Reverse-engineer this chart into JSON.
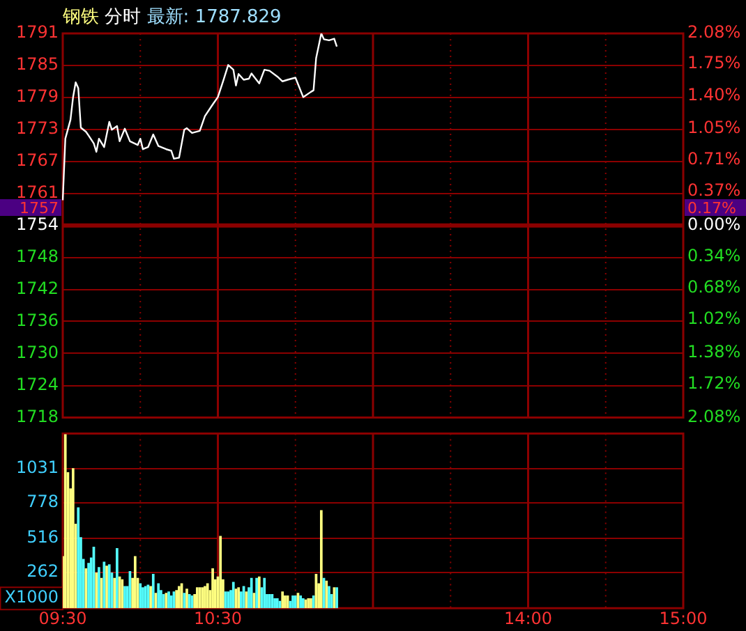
{
  "chart_data": [
    {
      "type": "line",
      "title": "钢铁 分时 最新: 1787.829",
      "tick_labels": "y",
      "categories": [
        null,
        null,
        null,
        null,
        null,
        null,
        null,
        null,
        null,
        null,
        null,
        null,
        null,
        null,
        null,
        null,
        null,
        null,
        null,
        null,
        null,
        null,
        null,
        null,
        null,
        null,
        null,
        null,
        null,
        null,
        null,
        null,
        null,
        null,
        null,
        null,
        null,
        null,
        null,
        null,
        null,
        null,
        null,
        null,
        null,
        null,
        null,
        null,
        null,
        null,
        null,
        null,
        null,
        null,
        null,
        null,
        null,
        null,
        null,
        null,
        null,
        null,
        null,
        null,
        null,
        null,
        null,
        null,
        null,
        null,
        null,
        null,
        null,
        null,
        null,
        null,
        null,
        null,
        null,
        null,
        null,
        null,
        null,
        null,
        null,
        null,
        null,
        null,
        null,
        null,
        null,
        null,
        null,
        null,
        null,
        null,
        null,
        null,
        null,
        null,
        null,
        null,
        null,
        null,
        null,
        null,
        null,
        null,
        null,
        null,
        null,
        null,
        null,
        null,
        null,
        null,
        null,
        null,
        null,
        null,
        null,
        null,
        null,
        null,
        null,
        null,
        null,
        null,
        null,
        null,
        null,
        null,
        null,
        null,
        null,
        null,
        null,
        null,
        null,
        null,
        null,
        null,
        null,
        null,
        null,
        null,
        null,
        null,
        null,
        null,
        null,
        null,
        null,
        null,
        null,
        null,
        null,
        null,
        null,
        null,
        null,
        null,
        null,
        null,
        null,
        null,
        null,
        null,
        null,
        null,
        null,
        null,
        null,
        null,
        null,
        null,
        null,
        null,
        null,
        null,
        null,
        null,
        null,
        null,
        null,
        null,
        null,
        null,
        null,
        null,
        null,
        null,
        null,
        null,
        null,
        null,
        null,
        null,
        null,
        null,
        null,
        null,
        null,
        null,
        null,
        null,
        null,
        null,
        null,
        null,
        null,
        null,
        null,
        null,
        null,
        null,
        null,
        null,
        null,
        null,
        null,
        null,
        null,
        null,
        null,
        null,
        null,
        null,
        null,
        null,
        null,
        null,
        null,
        null,
        null,
        null,
        null,
        null,
        null,
        null,
        null
      ],
      "series": [
        {
          "color": "#ffffff",
          "values": [
            1759.3,
            1771,
            null,
            1774.6,
            1778.9,
            1781.7,
            1780.6,
            1773.1,
            null,
            1772.3,
            1771.6,
            null,
            1770.1,
            1768.5,
            1771,
            null,
            1769.4,
            null,
            1774.2,
            1772.7,
            null,
            1773.4,
            1770.5,
            null,
            1772.9,
            null,
            1770.5,
            null,
            null,
            1769.8,
            1771,
            1769,
            null,
            1769.4,
            null,
            1771.8,
            null,
            1769.6,
            null,
            null,
            1769,
            null,
            1768.7,
            1767.2,
            null,
            1767.4,
            null,
            1772.7,
            1773,
            null,
            1772.1,
            null,
            null,
            1772.5,
            null,
            1775.3,
            null,
            null,
            1777.5,
            null,
            1778.9,
            null,
            1781.9,
            null,
            1785,
            null,
            1784.1,
            1781.1,
            1783.3,
            null,
            1782.2,
            null,
            1782.4,
            1783.4,
            null,
            null,
            1781.5,
            null,
            1784.1,
            null,
            1783.9,
            null,
            null,
            1782.8,
            null,
            1781.9,
            null,
            1782.2,
            null,
            null,
            1782.6,
            null,
            null,
            1778.9,
            null,
            null,
            1779.9,
            1780.2,
            1786.3,
            null,
            1791,
            1789.9,
            null,
            1789.7,
            null,
            1790,
            1788.5,
            null,
            null,
            null,
            null,
            null,
            null,
            null,
            null,
            null,
            null,
            null,
            null,
            null,
            null,
            null,
            null,
            null,
            null,
            null,
            null,
            null,
            null,
            null,
            null,
            null,
            null,
            null,
            null,
            null,
            null,
            null,
            null,
            null,
            null,
            null,
            null,
            null,
            null,
            null,
            null,
            null,
            null,
            null,
            null,
            null,
            null,
            null,
            null,
            null,
            null,
            null,
            null,
            null,
            null,
            null,
            null,
            null,
            null,
            null,
            null,
            null,
            null,
            null,
            null,
            null,
            null,
            null,
            null,
            null,
            null,
            null,
            null,
            null,
            null,
            null,
            null,
            null,
            null,
            null,
            null,
            null,
            null,
            null,
            null,
            null,
            null,
            null,
            null,
            null,
            null,
            null,
            null,
            null,
            null,
            null,
            null,
            null,
            null,
            null,
            null,
            null,
            null,
            null,
            null,
            null,
            null,
            null,
            null,
            null,
            null,
            null,
            null,
            null,
            null,
            null,
            null,
            null,
            null,
            null,
            null,
            null,
            null,
            null,
            null,
            null,
            null,
            null,
            null,
            null,
            null,
            null,
            null,
            null,
            null
          ]
        }
      ],
      "ylim": [
        1718,
        1791
      ],
      "yticks": [
        {
          "value": 1791,
          "label": "1791"
        },
        {
          "value": 1784.9,
          "label": "1785"
        },
        {
          "value": 1778.8,
          "label": "1779"
        },
        {
          "value": 1772.8,
          "label": "1773"
        },
        {
          "value": 1766.7,
          "label": "1767"
        },
        {
          "value": 1760.6,
          "label": "1761"
        },
        {
          "value": 1754.5,
          "label": "1754"
        },
        {
          "value": 1748.4,
          "label": "1748"
        },
        {
          "value": 1742.3,
          "label": "1742"
        },
        {
          "value": 1736.3,
          "label": "1736"
        },
        {
          "value": 1730.2,
          "label": "1730"
        },
        {
          "value": 1724.1,
          "label": "1724"
        },
        {
          "value": 1718,
          "label": "1718"
        }
      ],
      "y2lim": [
        -2.08,
        2.08
      ],
      "y2ticks": [
        {
          "value": 2.08,
          "label": "2.08%"
        },
        {
          "value": 1.75,
          "label": "1.75%"
        },
        {
          "value": 1.4,
          "label": "1.40%"
        },
        {
          "value": 1.05,
          "label": "1.05%"
        },
        {
          "value": 0.71,
          "label": "0.71%"
        },
        {
          "value": 0.37,
          "label": "0.37%"
        },
        {
          "value": 0,
          "label": "0.00%"
        },
        {
          "value": -0.34,
          "label": "0.34%"
        },
        {
          "value": -0.68,
          "label": "0.68%"
        },
        {
          "value": -1.02,
          "label": "1.02%"
        },
        {
          "value": -1.38,
          "label": "1.38%"
        },
        {
          "value": -1.72,
          "label": "1.72%"
        },
        {
          "value": -2.08,
          "label": "2.08%"
        }
      ],
      "ref_lines": [
        {
          "axis": "y",
          "value": 1754.5,
          "color": "#8b0000"
        }
      ],
      "annotations": [
        "1757",
        "0.17%"
      ],
      "grid": true,
      "legend": false,
      "marker": "none",
      "line_style": "solid"
    },
    {
      "type": "bar",
      "ylabel": "X1000",
      "categories": [
        "09:30",
        null,
        null,
        null,
        null,
        null,
        null,
        null,
        null,
        null,
        null,
        null,
        null,
        null,
        null,
        null,
        null,
        null,
        null,
        null,
        null,
        null,
        null,
        null,
        null,
        null,
        null,
        null,
        null,
        null,
        null,
        null,
        null,
        null,
        null,
        null,
        null,
        null,
        null,
        null,
        null,
        null,
        null,
        null,
        null,
        null,
        null,
        null,
        null,
        null,
        null,
        null,
        null,
        null,
        null,
        null,
        null,
        null,
        null,
        null,
        "10:30",
        null,
        null,
        null,
        null,
        null,
        null,
        null,
        null,
        null,
        null,
        null,
        null,
        null,
        null,
        null,
        null,
        null,
        null,
        null,
        null,
        null,
        null,
        null,
        null,
        null,
        null,
        null,
        null,
        null,
        null,
        null,
        null,
        null,
        null,
        null,
        null,
        null,
        null,
        null,
        null,
        null,
        null,
        null,
        null,
        null,
        null,
        null,
        null,
        null,
        null,
        null,
        null,
        null,
        null,
        null,
        null,
        null,
        null,
        null,
        null,
        null,
        null,
        null,
        null,
        null,
        null,
        null,
        null,
        null,
        null,
        null,
        null,
        null,
        null,
        null,
        null,
        null,
        null,
        null,
        null,
        null,
        null,
        null,
        null,
        null,
        null,
        null,
        null,
        null,
        null,
        null,
        null,
        null,
        null,
        null,
        null,
        null,
        null,
        null,
        null,
        null,
        null,
        null,
        null,
        null,
        null,
        null,
        null,
        null,
        null,
        null,
        null,
        null,
        null,
        null,
        null,
        null,
        null,
        null,
        "14:00",
        null,
        null,
        null,
        null,
        null,
        null,
        null,
        null,
        null,
        null,
        null,
        null,
        null,
        null,
        null,
        null,
        null,
        null,
        null,
        null,
        null,
        null,
        null,
        null,
        null,
        null,
        null,
        null,
        null,
        null,
        null,
        null,
        null,
        null,
        null,
        null,
        null,
        null,
        null,
        null,
        null,
        null,
        null,
        null,
        null,
        null,
        null,
        null,
        null,
        null,
        null,
        null,
        null,
        null,
        null,
        null,
        null,
        null,
        null,
        "15:00"
      ],
      "values": [
        380,
        1280,
        1000,
        880,
        1030,
        620,
        740,
        520,
        360,
        290,
        330,
        370,
        450,
        260,
        300,
        220,
        340,
        310,
        320,
        260,
        220,
        440,
        230,
        210,
        160,
        160,
        270,
        220,
        380,
        220,
        180,
        150,
        160,
        170,
        160,
        250,
        110,
        180,
        130,
        100,
        110,
        120,
        90,
        120,
        130,
        160,
        180,
        110,
        140,
        100,
        90,
        100,
        150,
        150,
        150,
        160,
        180,
        130,
        290,
        210,
        230,
        530,
        210,
        120,
        120,
        130,
        190,
        140,
        150,
        120,
        160,
        120,
        150,
        220,
        110,
        220,
        230,
        150,
        220,
        100,
        100,
        100,
        70,
        70,
        50,
        120,
        90,
        90,
        50,
        90,
        90,
        110,
        90,
        70,
        60,
        70,
        70,
        90,
        250,
        180,
        720,
        220,
        200,
        160,
        100,
        150,
        150,
        null,
        null,
        null,
        null,
        null,
        null,
        null,
        null,
        null,
        null,
        null,
        null,
        null,
        null,
        null,
        null,
        null,
        null,
        null,
        null,
        null,
        null,
        null,
        null,
        null,
        null,
        null,
        null,
        null,
        null,
        null,
        null,
        null,
        null,
        null,
        null,
        null,
        null,
        null,
        null,
        null,
        null,
        null,
        null,
        null,
        null,
        null,
        null,
        null,
        null,
        null,
        null,
        null,
        null,
        null,
        null,
        null,
        null,
        null,
        null,
        null,
        null,
        null,
        null,
        null,
        null,
        null,
        null,
        null,
        null,
        null,
        null,
        null,
        null,
        null,
        null,
        null,
        null,
        null,
        null,
        null,
        null,
        null,
        null,
        null,
        null,
        null,
        null,
        null,
        null,
        null,
        null,
        null,
        null,
        null,
        null,
        null,
        null,
        null,
        null,
        null,
        null,
        null,
        null,
        null,
        null,
        null,
        null,
        null,
        null,
        null,
        null,
        null,
        null,
        null,
        null,
        null,
        null,
        null,
        null,
        null,
        null,
        null,
        null,
        null,
        null,
        null,
        null,
        null,
        null,
        null,
        null,
        null,
        null
      ],
      "colors": [
        "#ffff80",
        "#ffff80",
        "#ffff80",
        "#ffff80",
        "#ffff80",
        "#ffff80",
        "#54fcfc",
        "#54fcfc",
        "#54fcfc",
        "#ffff80",
        "#54fcfc",
        "#54fcfc",
        "#54fcfc",
        "#ffff80",
        "#54fcfc",
        "#ffff80",
        "#54fcfc",
        "#ffff80",
        "#54fcfc",
        "#54fcfc",
        "#ffff80",
        "#54fcfc",
        "#ffff80",
        "#ffff80",
        "#54fcfc",
        "#54fcfc",
        "#54fcfc",
        "#ffff80",
        "#ffff80",
        "#ffff80",
        "#54fcfc",
        "#54fcfc",
        "#54fcfc",
        "#54fcfc",
        "#ffff80",
        "#54fcfc",
        "#ffff80",
        "#54fcfc",
        "#54fcfc",
        "#54fcfc",
        "#ffff80",
        "#54fcfc",
        "#54fcfc",
        "#54fcfc",
        "#ffff80",
        "#ffff80",
        "#ffff80",
        "#54fcfc",
        "#ffff80",
        "#54fcfc",
        "#54fcfc",
        "#ffff80",
        "#ffff80",
        "#ffff80",
        "#ffff80",
        "#ffff80",
        "#ffff80",
        "#ffff80",
        "#ffff80",
        "#ffff80",
        "#ffff80",
        "#ffff80",
        "#ffff80",
        "#54fcfc",
        "#54fcfc",
        "#54fcfc",
        "#54fcfc",
        "#ffff80",
        "#ffff80",
        "#54fcfc",
        "#54fcfc",
        "#ffff80",
        "#54fcfc",
        "#54fcfc",
        "#ffff80",
        "#54fcfc",
        "#ffff80",
        "#54fcfc",
        "#54fcfc",
        "#54fcfc",
        "#54fcfc",
        "#54fcfc",
        "#54fcfc",
        "#54fcfc",
        "#54fcfc",
        "#ffff80",
        "#ffff80",
        "#ffff80",
        "#54fcfc",
        "#54fcfc",
        "#54fcfc",
        "#ffff80",
        "#54fcfc",
        "#54fcfc",
        "#ffff80",
        "#ffff80",
        "#ffff80",
        "#54fcfc",
        "#ffff80",
        "#ffff80",
        "#ffff80",
        "#54fcfc",
        "#ffff80",
        "#54fcfc",
        "#54fcfc",
        "#ffff80",
        "#54fcfc",
        null,
        null,
        null,
        null,
        null,
        null,
        null,
        null,
        null,
        null,
        null,
        null,
        null,
        null,
        null,
        null,
        null,
        null,
        null,
        null,
        null,
        null,
        null,
        null,
        null,
        null,
        null,
        null,
        null,
        null,
        null,
        null,
        null,
        null,
        null,
        null,
        null,
        null,
        null,
        null,
        null,
        null,
        null,
        null,
        null,
        null,
        null,
        null,
        null,
        null,
        null,
        null,
        null,
        null,
        null,
        null,
        null,
        null,
        null,
        null,
        null,
        null,
        null,
        null,
        null,
        null,
        null,
        null,
        null,
        null,
        null,
        null,
        null,
        null,
        null,
        null,
        null,
        null,
        null,
        null,
        null,
        null,
        null,
        null,
        null,
        null,
        null,
        null,
        null,
        null,
        null,
        null,
        null,
        null,
        null,
        null,
        null,
        null,
        null,
        null,
        null,
        null,
        null,
        null,
        null,
        null,
        null,
        null,
        null,
        null,
        null,
        null,
        null,
        null,
        null,
        null,
        null,
        null,
        null,
        null,
        null,
        null,
        null,
        null,
        null,
        null,
        null,
        null,
        null,
        null,
        null,
        null,
        null,
        null
      ],
      "ylim": [
        0,
        1289
      ],
      "yticks": [
        262,
        516,
        778,
        1031
      ],
      "grid": true,
      "legend": false
    }
  ]
}
